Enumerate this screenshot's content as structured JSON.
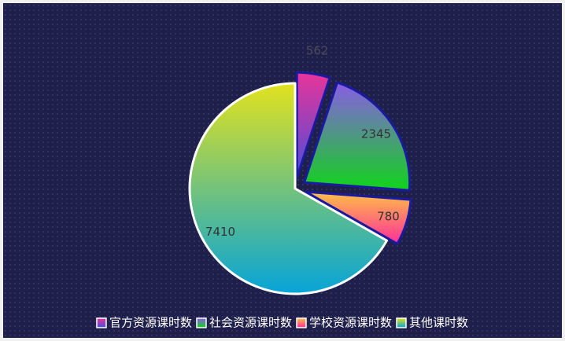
{
  "chart_data": {
    "type": "pie",
    "categories": [
      "官方资源课时数",
      "社会资源课时数",
      "学校资源课时数",
      "其他课时数"
    ],
    "values": [
      562,
      2345,
      780,
      7410
    ],
    "colors": [
      [
        "#e8349a",
        "#4a4ed8"
      ],
      [
        "#8a5ce6",
        "#10d41a"
      ],
      [
        "#ffc046",
        "#ff2e9a"
      ],
      [
        "#e2e21e",
        "#06a4d8"
      ]
    ],
    "legend": "bottom"
  }
}
